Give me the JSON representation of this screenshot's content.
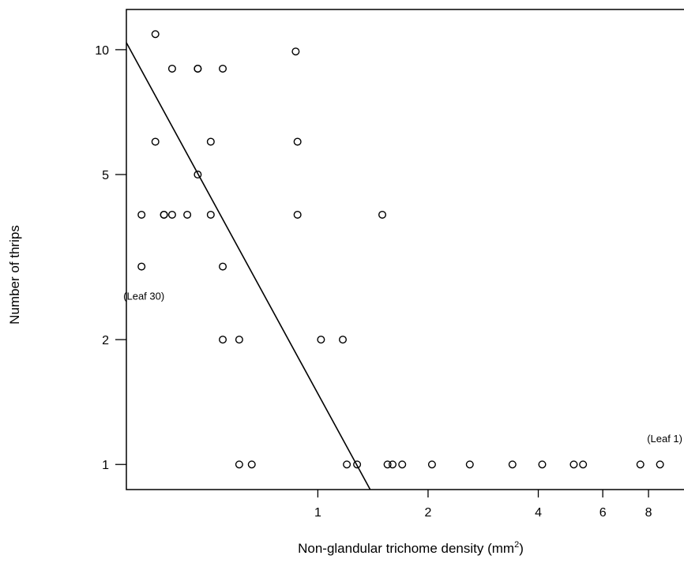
{
  "chart_data": {
    "type": "scatter",
    "xlabel": "Non-glandular trichome density (mm",
    "xlabel_sup": "2",
    "xlabel_end": ")",
    "ylabel": "Number of thrips",
    "x_scale": "log",
    "y_scale": "log",
    "xlim": [
      0.3,
      10
    ],
    "ylim": [
      0.87,
      12.5
    ],
    "x_ticks": [
      1,
      2,
      4,
      6,
      8
    ],
    "x_tick_labels": [
      "1",
      "2",
      "4",
      "6",
      "8"
    ],
    "y_ticks": [
      1,
      2,
      5,
      10
    ],
    "y_tick_labels": [
      "1",
      "2",
      "5",
      "10"
    ],
    "grid": false,
    "box": true,
    "points": [
      {
        "x": 0.36,
        "y": 10.9
      },
      {
        "x": 0.87,
        "y": 9.9
      },
      {
        "x": 0.4,
        "y": 9
      },
      {
        "x": 0.47,
        "y": 9
      },
      {
        "x": 0.47,
        "y": 9
      },
      {
        "x": 0.55,
        "y": 9
      },
      {
        "x": 0.36,
        "y": 6
      },
      {
        "x": 0.51,
        "y": 6
      },
      {
        "x": 0.88,
        "y": 6
      },
      {
        "x": 0.47,
        "y": 5
      },
      {
        "x": 0.33,
        "y": 4
      },
      {
        "x": 0.38,
        "y": 4
      },
      {
        "x": 0.38,
        "y": 4
      },
      {
        "x": 0.4,
        "y": 4
      },
      {
        "x": 0.44,
        "y": 4
      },
      {
        "x": 0.51,
        "y": 4
      },
      {
        "x": 0.88,
        "y": 4
      },
      {
        "x": 1.5,
        "y": 4
      },
      {
        "x": 0.33,
        "y": 3
      },
      {
        "x": 0.55,
        "y": 3
      },
      {
        "x": 0.55,
        "y": 2
      },
      {
        "x": 0.61,
        "y": 2
      },
      {
        "x": 1.02,
        "y": 2
      },
      {
        "x": 1.17,
        "y": 2
      },
      {
        "x": 0.61,
        "y": 1
      },
      {
        "x": 0.66,
        "y": 1
      },
      {
        "x": 1.2,
        "y": 1
      },
      {
        "x": 1.28,
        "y": 1
      },
      {
        "x": 1.55,
        "y": 1
      },
      {
        "x": 1.6,
        "y": 1
      },
      {
        "x": 1.7,
        "y": 1
      },
      {
        "x": 2.05,
        "y": 1
      },
      {
        "x": 2.6,
        "y": 1
      },
      {
        "x": 3.4,
        "y": 1
      },
      {
        "x": 4.1,
        "y": 1
      },
      {
        "x": 5,
        "y": 1
      },
      {
        "x": 5.3,
        "y": 1
      },
      {
        "x": 7.6,
        "y": 1
      },
      {
        "x": 8.6,
        "y": 1
      }
    ],
    "fit_line": {
      "x": [
        0.3,
        1.39
      ],
      "y": [
        10.4,
        0.87
      ]
    },
    "annotations": [
      {
        "text": "(Leaf 30)",
        "x": 0.33,
        "y": 3
      },
      {
        "text": "(Leaf 1)",
        "x": 8.6,
        "y": 1
      }
    ]
  }
}
